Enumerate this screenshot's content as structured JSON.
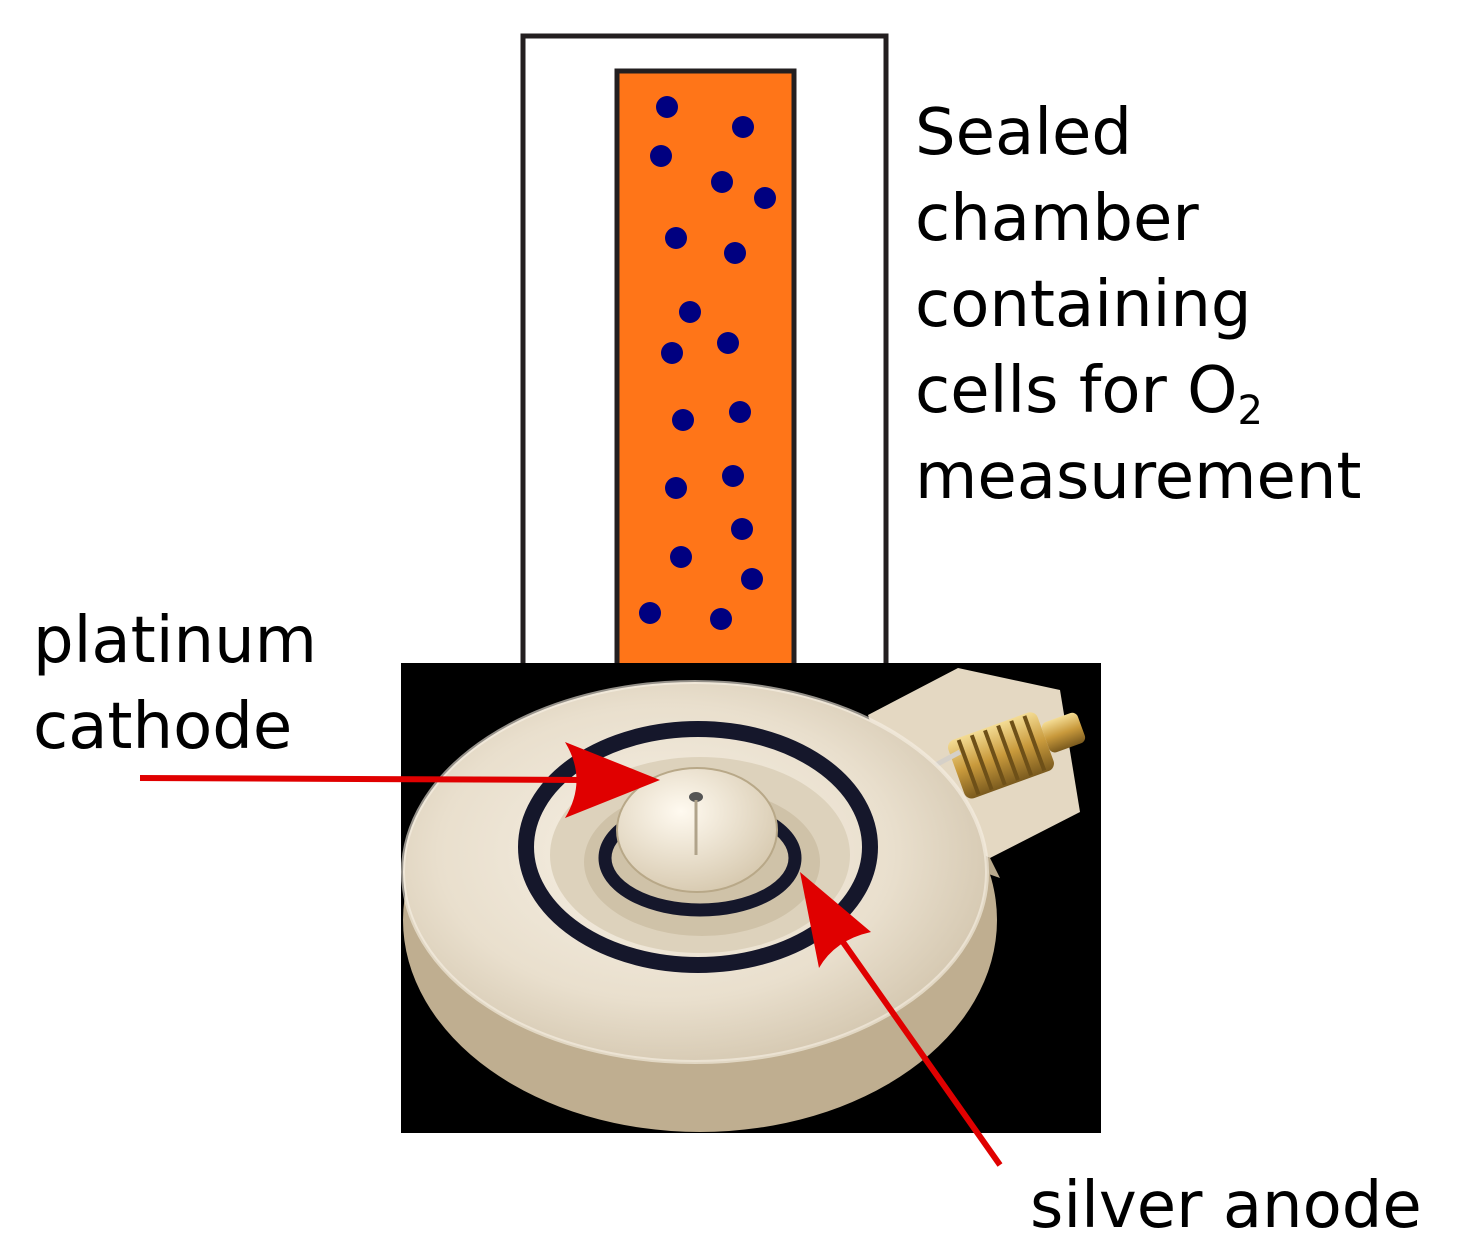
{
  "colors": {
    "chamber_outline": "#231f20",
    "cell_fill": "#ff7518",
    "cell_dots": "#000080",
    "base_background": "#000000",
    "electrode_body": "#ece4d4",
    "o_ring": "#15172b",
    "connector": "#c9a04a",
    "arrow": "#e00000"
  },
  "chamber_label": {
    "line1": "Sealed",
    "line2": "chamber",
    "line3": "containing",
    "line4_text": "cells for O",
    "line4_sub": "2",
    "line5": "measurement"
  },
  "cathode_label": {
    "line1": "platinum",
    "line2": "cathode"
  },
  "anode_label": {
    "text": "silver anode"
  },
  "icons": {
    "electrode": "clark-oxygen-electrode-photo",
    "cells": "cell-dots",
    "pointer": "arrow"
  }
}
